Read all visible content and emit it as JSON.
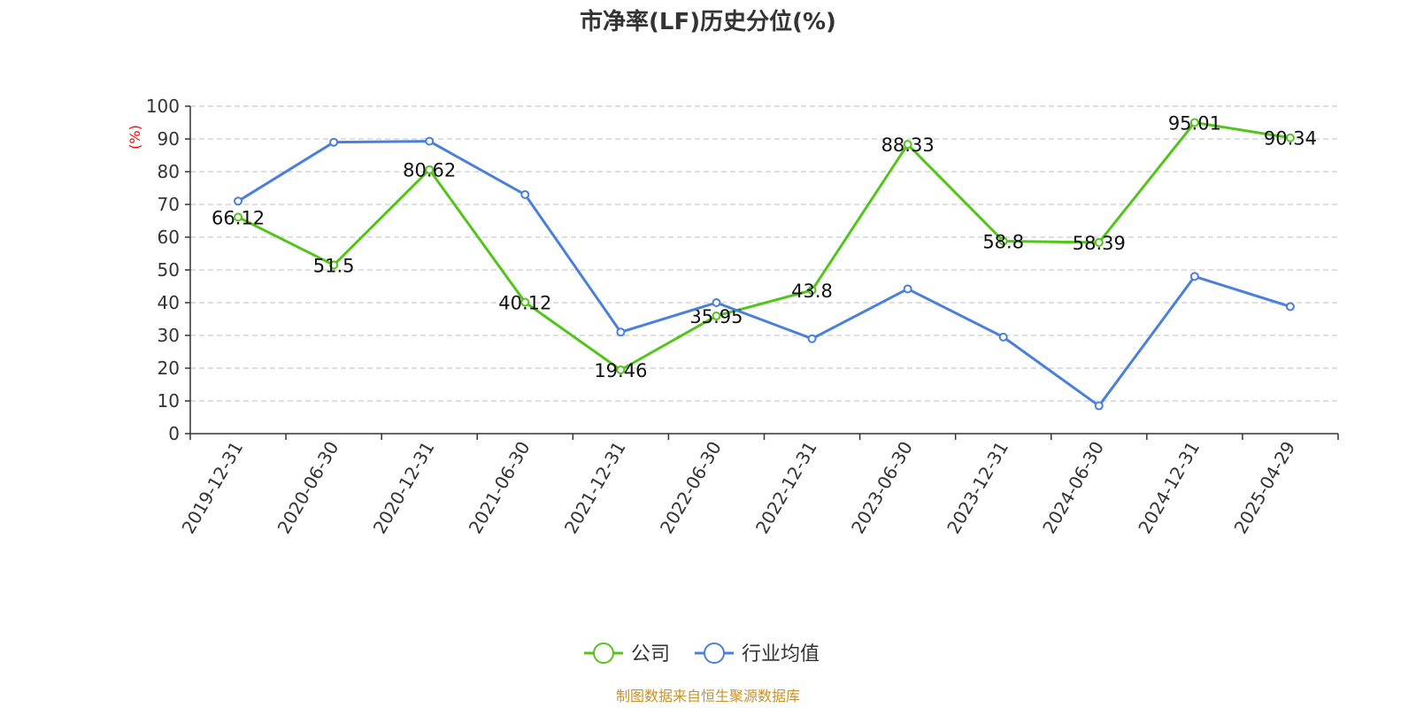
{
  "chart_data": {
    "type": "line",
    "title": "市净率(LF)历史分位(%)",
    "ylabel": "(%)",
    "xlabel": "",
    "ylim": [
      0,
      100
    ],
    "yticks": [
      0,
      10,
      20,
      30,
      40,
      50,
      60,
      70,
      80,
      90,
      100
    ],
    "grid": true,
    "legend_position": "bottom",
    "categories": [
      "2019-12-31",
      "2020-06-30",
      "2020-12-31",
      "2021-06-30",
      "2021-12-31",
      "2022-06-30",
      "2022-12-31",
      "2023-06-30",
      "2023-12-31",
      "2024-06-30",
      "2024-12-31",
      "2025-04-29"
    ],
    "series": [
      {
        "name": "公司",
        "color": "#52c41a",
        "values": [
          66.12,
          51.5,
          80.62,
          40.12,
          19.46,
          35.95,
          43.8,
          88.33,
          58.8,
          58.39,
          95.01,
          90.34
        ],
        "labels": [
          "66.12",
          "51.5",
          "80.62",
          "40.12",
          "19.46",
          "35.95",
          "43.8",
          "88.33",
          "58.8",
          "58.39",
          "95.01",
          "90.34"
        ]
      },
      {
        "name": "行业均值",
        "color": "#4a7fdc",
        "values": [
          71,
          89,
          89.3,
          73,
          31,
          40,
          29,
          44.2,
          29.5,
          8.5,
          48,
          38.8
        ]
      }
    ],
    "source": "制图数据来自恒生聚源数据库"
  }
}
